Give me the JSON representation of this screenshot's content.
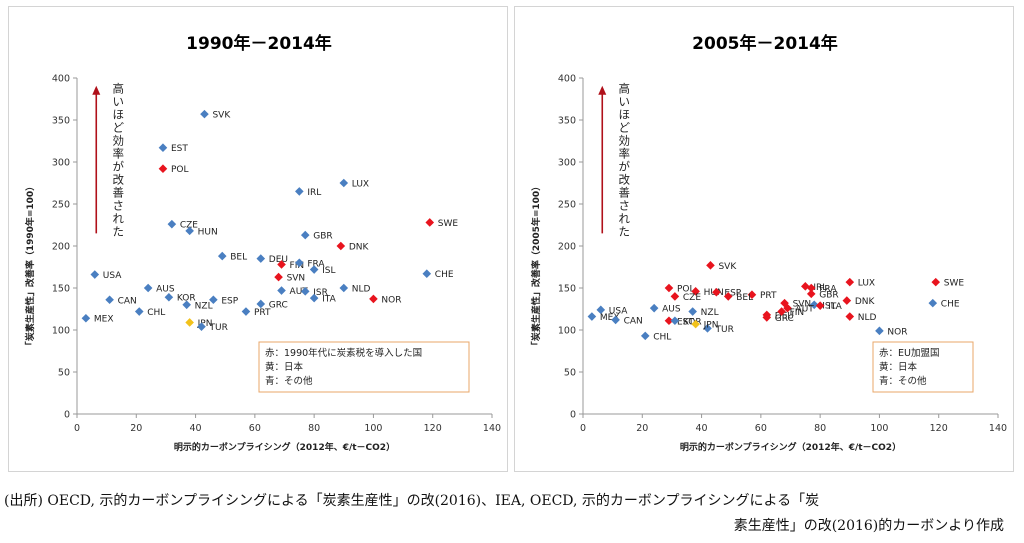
{
  "chart_data": [
    {
      "type": "scatter",
      "title": "1990年－2014年",
      "xlabel": "明示的カーボンプライシング（2012年、€/t－CO2）",
      "ylabel": "「炭素生産性」改善率（1990年=100）",
      "xlim": [
        0,
        140
      ],
      "ylim": [
        0,
        400
      ],
      "xticks": [
        "0",
        "20",
        "40",
        "60",
        "80",
        "100",
        "120",
        "140"
      ],
      "yticks": [
        "0",
        "50",
        "100",
        "150",
        "200",
        "250",
        "300",
        "350",
        "400"
      ],
      "grid": false,
      "arrow_text": "高いほど効率が改善された",
      "legend": [
        "赤：1990年代に炭素税を導入した国",
        "黄：日本",
        "青：その他"
      ],
      "colors": {
        "red": "#e8141e",
        "yellow": "#f2c21b",
        "blue": "#4a7fc1"
      },
      "points": [
        {
          "label": "SVK",
          "x": 43,
          "y": 357,
          "color": "blue"
        },
        {
          "label": "EST",
          "x": 29,
          "y": 317,
          "color": "blue"
        },
        {
          "label": "POL",
          "x": 29,
          "y": 292,
          "color": "red"
        },
        {
          "label": "LUX",
          "x": 90,
          "y": 275,
          "color": "blue"
        },
        {
          "label": "IRL",
          "x": 75,
          "y": 265,
          "color": "blue"
        },
        {
          "label": "SWE",
          "x": 119,
          "y": 228,
          "color": "red"
        },
        {
          "label": "CZE",
          "x": 32,
          "y": 226,
          "color": "blue"
        },
        {
          "label": "HUN",
          "x": 38,
          "y": 218,
          "color": "blue"
        },
        {
          "label": "GBR",
          "x": 77,
          "y": 213,
          "color": "blue"
        },
        {
          "label": "DNK",
          "x": 89,
          "y": 200,
          "color": "red"
        },
        {
          "label": "BEL",
          "x": 49,
          "y": 188,
          "color": "blue"
        },
        {
          "label": "DEU",
          "x": 62,
          "y": 185,
          "color": "blue"
        },
        {
          "label": "FIN",
          "x": 69,
          "y": 178,
          "color": "red"
        },
        {
          "label": "FRA",
          "x": 75,
          "y": 180,
          "color": "blue"
        },
        {
          "label": "ISL",
          "x": 80,
          "y": 172,
          "color": "blue"
        },
        {
          "label": "CHE",
          "x": 118,
          "y": 167,
          "color": "blue"
        },
        {
          "label": "USA",
          "x": 6,
          "y": 166,
          "color": "blue"
        },
        {
          "label": "SVN",
          "x": 68,
          "y": 163,
          "color": "red"
        },
        {
          "label": "AUS",
          "x": 24,
          "y": 150,
          "color": "blue"
        },
        {
          "label": "AUT",
          "x": 69,
          "y": 147,
          "color": "blue"
        },
        {
          "label": "ISR",
          "x": 77,
          "y": 146,
          "color": "blue"
        },
        {
          "label": "NLD",
          "x": 90,
          "y": 150,
          "color": "blue"
        },
        {
          "label": "NOR",
          "x": 100,
          "y": 137,
          "color": "red"
        },
        {
          "label": "KOR",
          "x": 31,
          "y": 139,
          "color": "blue"
        },
        {
          "label": "ITA",
          "x": 80,
          "y": 138,
          "color": "blue"
        },
        {
          "label": "CAN",
          "x": 11,
          "y": 136,
          "color": "blue"
        },
        {
          "label": "ESP",
          "x": 46,
          "y": 136,
          "color": "blue"
        },
        {
          "label": "NZL",
          "x": 37,
          "y": 130,
          "color": "blue"
        },
        {
          "label": "GRC",
          "x": 62,
          "y": 131,
          "color": "blue"
        },
        {
          "label": "CHL",
          "x": 21,
          "y": 122,
          "color": "blue"
        },
        {
          "label": "PRT",
          "x": 57,
          "y": 122,
          "color": "blue"
        },
        {
          "label": "MEX",
          "x": 3,
          "y": 114,
          "color": "blue"
        },
        {
          "label": "JPN",
          "x": 38,
          "y": 109,
          "color": "yellow"
        },
        {
          "label": "TUR",
          "x": 42,
          "y": 104,
          "color": "blue"
        }
      ]
    },
    {
      "type": "scatter",
      "title": "2005年－2014年",
      "xlabel": "明示的カーボンプライシング（2012年、€/t－CO2）",
      "ylabel": "「炭素生産性」改善率（2005年=100）",
      "xlim": [
        0,
        140
      ],
      "ylim": [
        0,
        400
      ],
      "xticks": [
        "0",
        "20",
        "40",
        "60",
        "80",
        "100",
        "120",
        "140"
      ],
      "yticks": [
        "0",
        "50",
        "100",
        "150",
        "200",
        "250",
        "300",
        "350",
        "400"
      ],
      "grid": false,
      "arrow_text": "高いほど効率が改善された",
      "legend": [
        "赤：EU加盟国",
        "黄：日本",
        "青：その他"
      ],
      "colors": {
        "red": "#e8141e",
        "yellow": "#f2c21b",
        "blue": "#4a7fc1"
      },
      "points": [
        {
          "label": "SVK",
          "x": 43,
          "y": 177,
          "color": "red"
        },
        {
          "label": "LUX",
          "x": 90,
          "y": 157,
          "color": "red"
        },
        {
          "label": "SWE",
          "x": 119,
          "y": 157,
          "color": "red"
        },
        {
          "label": "IRL",
          "x": 75,
          "y": 152,
          "color": "red"
        },
        {
          "label": "FRA",
          "x": 77,
          "y": 150,
          "color": "red"
        },
        {
          "label": "POL",
          "x": 29,
          "y": 150,
          "color": "red"
        },
        {
          "label": "HUN",
          "x": 38,
          "y": 146,
          "color": "red"
        },
        {
          "label": "ESP",
          "x": 45,
          "y": 145,
          "color": "red"
        },
        {
          "label": "GBR",
          "x": 77,
          "y": 143,
          "color": "red"
        },
        {
          "label": "PRT",
          "x": 57,
          "y": 142,
          "color": "red"
        },
        {
          "label": "CZE",
          "x": 31,
          "y": 140,
          "color": "red"
        },
        {
          "label": "BEL",
          "x": 49,
          "y": 140,
          "color": "red"
        },
        {
          "label": "DNK",
          "x": 89,
          "y": 135,
          "color": "red"
        },
        {
          "label": "SVN",
          "x": 68,
          "y": 132,
          "color": "red"
        },
        {
          "label": "CHE",
          "x": 118,
          "y": 132,
          "color": "blue"
        },
        {
          "label": "ISL",
          "x": 78,
          "y": 130,
          "color": "blue"
        },
        {
          "label": "ITA",
          "x": 80,
          "y": 129,
          "color": "red"
        },
        {
          "label": "AUT",
          "x": 69,
          "y": 126,
          "color": "red"
        },
        {
          "label": "AUS",
          "x": 24,
          "y": 126,
          "color": "blue"
        },
        {
          "label": "NZL",
          "x": 37,
          "y": 122,
          "color": "blue"
        },
        {
          "label": "USA",
          "x": 6,
          "y": 124,
          "color": "blue"
        },
        {
          "label": "DEU",
          "x": 62,
          "y": 118,
          "color": "red"
        },
        {
          "label": "FIN",
          "x": 67,
          "y": 122,
          "color": "red"
        },
        {
          "label": "GRC",
          "x": 62,
          "y": 115,
          "color": "red"
        },
        {
          "label": "MEX",
          "x": 3,
          "y": 116,
          "color": "blue"
        },
        {
          "label": "NLD",
          "x": 90,
          "y": 116,
          "color": "red"
        },
        {
          "label": "CAN",
          "x": 11,
          "y": 112,
          "color": "blue"
        },
        {
          "label": "EST",
          "x": 29,
          "y": 111,
          "color": "red"
        },
        {
          "label": "KOR",
          "x": 31,
          "y": 111,
          "color": "blue"
        },
        {
          "label": "TUR",
          "x": 42,
          "y": 102,
          "color": "blue"
        },
        {
          "label": "JPN",
          "x": 38,
          "y": 107,
          "color": "yellow"
        },
        {
          "label": "NOR",
          "x": 100,
          "y": 99,
          "color": "blue"
        },
        {
          "label": "CHL",
          "x": 21,
          "y": 93,
          "color": "blue"
        }
      ]
    }
  ],
  "source": {
    "line1": "(出所) OECD, 示的カーボンプライシングによる「炭素生産性」の改(2016)、IEA, OECD, 示的カーボンプライシングによる「炭",
    "line2": "素生産性」の改(2016)的カーボンより作成"
  }
}
